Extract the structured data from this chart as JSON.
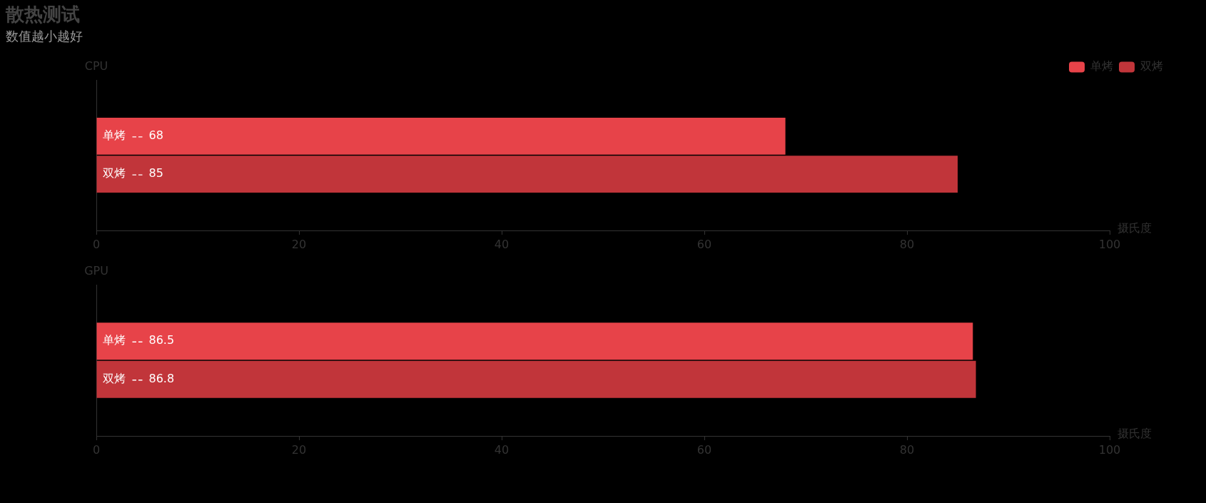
{
  "chart_data": [
    {
      "type": "bar",
      "title": "散热测试",
      "subtitle": "数值越小越好",
      "ylabel": "CPU",
      "xlabel": "摄氏度",
      "orientation": "horizontal",
      "categories": [
        null
      ],
      "series": [
        {
          "name": "单烤",
          "color": "#e74349",
          "values": [
            68
          ]
        },
        {
          "name": "双烤",
          "color": "#c1353a",
          "values": [
            85
          ]
        }
      ],
      "xlim": [
        0,
        100
      ],
      "xticks": [
        0,
        20,
        40,
        60,
        80,
        100
      ],
      "legend": "top right",
      "data_labels": true
    },
    {
      "type": "bar",
      "ylabel": "GPU",
      "xlabel": "摄氏度",
      "orientation": "horizontal",
      "categories": [
        null
      ],
      "series": [
        {
          "name": "单烤",
          "color": "#e74349",
          "values": [
            86.5
          ]
        },
        {
          "name": "双烤",
          "color": "#c1353a",
          "values": [
            86.8
          ]
        }
      ],
      "xlim": [
        0,
        100
      ],
      "xticks": [
        0,
        20,
        40,
        60,
        80,
        100
      ],
      "data_labels": true
    }
  ]
}
